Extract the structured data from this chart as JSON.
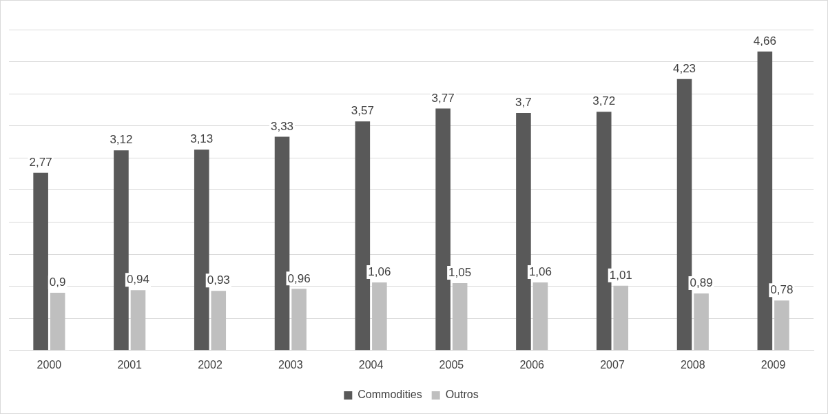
{
  "chart_data": {
    "type": "bar",
    "categories": [
      "2000",
      "2001",
      "2002",
      "2003",
      "2004",
      "2005",
      "2006",
      "2007",
      "2008",
      "2009"
    ],
    "series": [
      {
        "name": "Commodities",
        "color": "#595959",
        "values": [
          2.77,
          3.12,
          3.13,
          3.33,
          3.57,
          3.77,
          3.7,
          3.72,
          4.23,
          4.66
        ],
        "value_labels": [
          "2,77",
          "3,12",
          "3,13",
          "3,33",
          "3,57",
          "3,77",
          "3,7",
          "3,72",
          "4,23",
          "4,66"
        ]
      },
      {
        "name": "Outros",
        "color": "#bfbfbf",
        "values": [
          0.9,
          0.94,
          0.93,
          0.96,
          1.06,
          1.05,
          1.06,
          1.01,
          0.89,
          0.78
        ],
        "value_labels": [
          "0,9",
          "0,94",
          "0,93",
          "0,96",
          "1,06",
          "1,05",
          "1,06",
          "1,01",
          "0,89",
          "0,78"
        ]
      }
    ],
    "ylim": [
      0,
      5
    ],
    "yticks": [
      {
        "value": 0,
        "label": null
      },
      {
        "value": 0.5,
        "label": null
      },
      {
        "value": 1,
        "label": null
      },
      {
        "value": 1.5,
        "label": null
      },
      {
        "value": 2,
        "label": null
      },
      {
        "value": 2.5,
        "label": null
      },
      {
        "value": 3,
        "label": null
      },
      {
        "value": 3.5,
        "label": null
      },
      {
        "value": 4,
        "label": null
      },
      {
        "value": 4.5,
        "label": null
      },
      {
        "value": 5,
        "label": null
      }
    ],
    "grid": "y",
    "legend": "bottom",
    "tick_labels": "x"
  }
}
